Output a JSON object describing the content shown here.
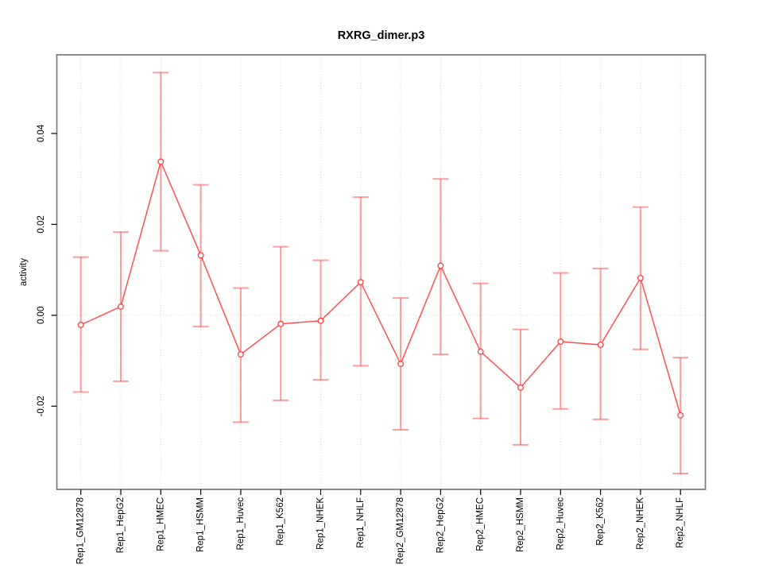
{
  "chart_data": {
    "type": "line",
    "title": "RXRG_dimer.p3",
    "xlabel": "",
    "ylabel": "activity",
    "categories": [
      "Rep1_GM12878",
      "Rep1_HepG2",
      "Rep1_HMEC",
      "Rep1_HSMM",
      "Rep1_Huvec",
      "Rep1_K562",
      "Rep1_NHEK",
      "Rep1_NHLF",
      "Rep2_GM12878",
      "Rep2_HepG2",
      "Rep2_HMEC",
      "Rep2_HSMM",
      "Rep2_Huvec",
      "Rep2_K562",
      "Rep2_NHEK",
      "Rep2_NHLF"
    ],
    "series": [
      {
        "name": "activity",
        "marker": "open-circle",
        "values": [
          -0.0021,
          0.0019,
          0.0338,
          0.0132,
          -0.0086,
          -0.0019,
          -0.0012,
          0.0073,
          -0.0107,
          0.0109,
          -0.008,
          -0.0159,
          -0.0058,
          -0.0065,
          0.0082,
          -0.022
        ],
        "upper": [
          0.0128,
          0.0183,
          0.0534,
          0.0287,
          0.006,
          0.0151,
          0.0121,
          0.026,
          0.0038,
          0.03,
          0.007,
          -0.0031,
          0.0093,
          0.0103,
          0.0238,
          -0.0093
        ],
        "lower": [
          -0.0169,
          -0.0145,
          0.0142,
          -0.0025,
          -0.0235,
          -0.0187,
          -0.0142,
          -0.0111,
          -0.0252,
          -0.0086,
          -0.0227,
          -0.0285,
          -0.0206,
          -0.0229,
          -0.0075,
          -0.0348
        ]
      }
    ],
    "yticks": [
      -0.02,
      0.0,
      0.02,
      0.04
    ],
    "ytick_labels": [
      "-0.02",
      "0.00",
      "0.02",
      "0.04"
    ],
    "ylim": [
      -0.0383,
      0.0573
    ],
    "grid": {
      "vertical_dotted": true,
      "horizontal_zero_line_dotted": true
    },
    "legend_position": "none",
    "colors": {
      "line": "#ff5050",
      "marker_stroke": "#ff4040",
      "error_bar": "#ff4040",
      "grid_line": "#d6d6d6",
      "plot_border": "#808080",
      "text": "#000000",
      "background": "#ffffff"
    }
  }
}
